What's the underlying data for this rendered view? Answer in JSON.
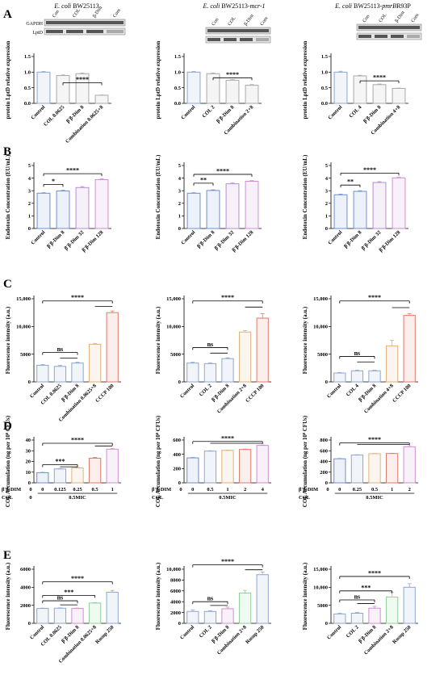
{
  "figure": {
    "row_labels": [
      "A",
      "B",
      "C",
      "D",
      "E"
    ],
    "columns": [
      {
        "italic": "E. coli",
        "strain": "BW25113",
        "suffix": ""
      },
      {
        "italic": "E. coli",
        "strain": "BW25113-",
        "suffix": "mcr-1"
      },
      {
        "italic": "E. coli",
        "strain": "BW25113-",
        "suffix": "pmrB",
        "suffix2": "R93P"
      }
    ],
    "blot_labels": {
      "gapdh": "GAPDH",
      "lptd": "LptD",
      "lanes": [
        "Con",
        "COL",
        "β-Dim",
        "Com"
      ]
    },
    "d_axis_labels": {
      "dim_row": "β'β-DIM",
      "col_row": "COL"
    }
  },
  "chart_data": [
    {
      "id": "A1",
      "type": "bar",
      "row": "A",
      "col": 0,
      "ylabel": "protein LptD relative expression",
      "ylim": [
        0,
        1.5
      ],
      "yticks": [
        0.0,
        0.5,
        1.0,
        1.5
      ],
      "ytick_labels": [
        "0.0",
        "0.5",
        "1.0",
        "1.5"
      ],
      "categories": [
        "Control",
        "COL 0.0625",
        "β'β-Dim 8",
        "Combination 0.0625+8"
      ],
      "values": [
        1.0,
        0.89,
        0.95,
        0.26
      ],
      "errors": [
        0.02,
        0.02,
        0.02,
        0.01
      ],
      "colors": [
        "#8fa6cf",
        "#a9a9a9",
        "#a9a9a9",
        "#a9a9a9"
      ],
      "sig": [
        {
          "from": 1,
          "to": 3,
          "label": "****",
          "level": 0.66
        }
      ]
    },
    {
      "id": "A2",
      "type": "bar",
      "row": "A",
      "col": 1,
      "ylabel": "protein LptD relative expression",
      "ylim": [
        0,
        1.5
      ],
      "yticks": [
        0.0,
        0.5,
        1.0,
        1.5
      ],
      "ytick_labels": [
        "0.0",
        "0.5",
        "1.0",
        "1.5"
      ],
      "categories": [
        "Control",
        "COL 2",
        "β'β-Dim 8",
        "Combination 2+8"
      ],
      "values": [
        1.0,
        0.95,
        0.74,
        0.58
      ],
      "errors": [
        0.02,
        0.02,
        0.02,
        0.02
      ],
      "colors": [
        "#8fa6cf",
        "#a9a9a9",
        "#a9a9a9",
        "#a9a9a9"
      ],
      "sig": [
        {
          "from": 1,
          "to": 3,
          "label": "****",
          "level": 0.82
        }
      ]
    },
    {
      "id": "A3",
      "type": "bar",
      "row": "A",
      "col": 2,
      "ylabel": "protein LptD relative expression",
      "ylim": [
        0,
        1.5
      ],
      "yticks": [
        0.0,
        0.5,
        1.0,
        1.5
      ],
      "ytick_labels": [
        "0.0",
        "0.5",
        "1.0",
        "1.5"
      ],
      "categories": [
        "Control",
        "COL 4",
        "β'β-Dim 8",
        "Combination 4+8"
      ],
      "values": [
        1.0,
        0.88,
        0.6,
        0.48
      ],
      "errors": [
        0.03,
        0.02,
        0.02,
        0.01
      ],
      "colors": [
        "#8fa6cf",
        "#a9a9a9",
        "#a9a9a9",
        "#a9a9a9"
      ],
      "sig": [
        {
          "from": 1,
          "to": 3,
          "label": "****",
          "level": 0.72
        }
      ]
    },
    {
      "id": "B1",
      "type": "bar",
      "row": "B",
      "col": 0,
      "ylabel": "Endotoxin Concentration (EU/mL)",
      "ylim": [
        0,
        5
      ],
      "yticks": [
        0,
        1,
        2,
        3,
        4,
        5
      ],
      "ytick_labels": [
        "0",
        "1",
        "2",
        "3",
        "4",
        "5"
      ],
      "categories": [
        "Control",
        "β'β-Dim 8",
        "β'β-Dim 32",
        "β'β-Dim 128"
      ],
      "values": [
        2.8,
        2.98,
        3.25,
        3.88
      ],
      "errors": [
        0.04,
        0.05,
        0.08,
        0.06
      ],
      "colors": [
        "#6f8fcf",
        "#6f8fcf",
        "#b58fcf",
        "#cf8fcf"
      ],
      "sig": [
        {
          "from": 0,
          "to": 1,
          "label": "*",
          "level": 3.5
        },
        {
          "from": 0,
          "to": 3,
          "label": "****",
          "level": 4.35
        }
      ]
    },
    {
      "id": "B2",
      "type": "bar",
      "row": "B",
      "col": 1,
      "ylabel": "Endotoxin Concentration (EU/mL)",
      "ylim": [
        0,
        5
      ],
      "yticks": [
        0,
        1,
        2,
        3,
        4,
        5
      ],
      "ytick_labels": [
        "0",
        "1",
        "2",
        "3",
        "4",
        "5"
      ],
      "categories": [
        "Control",
        "β'β-Dim 8",
        "β'β-Dim 32",
        "β'β-Dim 128"
      ],
      "values": [
        2.8,
        3.02,
        3.55,
        3.75
      ],
      "errors": [
        0.04,
        0.05,
        0.06,
        0.05
      ],
      "colors": [
        "#6f8fcf",
        "#6f8fcf",
        "#b58fcf",
        "#cf8fcf"
      ],
      "sig": [
        {
          "from": 0,
          "to": 1,
          "label": "**",
          "level": 3.6
        },
        {
          "from": 0,
          "to": 3,
          "label": "****",
          "level": 4.3
        }
      ]
    },
    {
      "id": "B3",
      "type": "bar",
      "row": "B",
      "col": 2,
      "ylabel": "Endotoxin Concentration (EU/mL)",
      "ylim": [
        0,
        5
      ],
      "yticks": [
        0,
        1,
        2,
        3,
        4,
        5
      ],
      "ytick_labels": [
        "0",
        "1",
        "2",
        "3",
        "4",
        "5"
      ],
      "categories": [
        "Control",
        "β'β-Dim 8",
        "β'β-Dim 32",
        "β'β-Dim 128"
      ],
      "values": [
        2.68,
        2.95,
        3.65,
        4.02
      ],
      "errors": [
        0.05,
        0.05,
        0.07,
        0.05
      ],
      "colors": [
        "#6f8fcf",
        "#6f8fcf",
        "#b58fcf",
        "#cf8fcf"
      ],
      "sig": [
        {
          "from": 0,
          "to": 1,
          "label": "**",
          "level": 3.45
        },
        {
          "from": 0,
          "to": 3,
          "label": "****",
          "level": 4.4
        }
      ]
    },
    {
      "id": "C1",
      "type": "bar",
      "row": "C",
      "col": 0,
      "ylabel": "Fluorescence intensity (a.u.)",
      "ylim": [
        0,
        15000
      ],
      "yticks": [
        0,
        5000,
        10000,
        15000
      ],
      "ytick_labels": [
        "0",
        "5000",
        "10,000",
        "15,000"
      ],
      "categories": [
        "Control",
        "COL 0.0625",
        "β'β-Dim 8",
        "Combination 0.0625+8",
        "CCCP 100"
      ],
      "values": [
        3000,
        2800,
        3400,
        6800,
        12500
      ],
      "errors": [
        150,
        180,
        150,
        150,
        300
      ],
      "colors": [
        "#8fa6cf",
        "#8fa6cf",
        "#8fa6cf",
        "#e0b07a",
        "#e07a6a"
      ],
      "sig": [
        {
          "from": 0,
          "to": 2,
          "label": "ns",
          "level": 5300,
          "nested": [
            {
              "from": 1,
              "to": 2,
              "level": 4300
            }
          ]
        },
        {
          "from": 0,
          "to": 4,
          "label": "****",
          "level": 14600,
          "nested": [
            {
              "from": 3,
              "to": 4,
              "level": 13600
            }
          ]
        }
      ]
    },
    {
      "id": "C2",
      "type": "bar",
      "row": "C",
      "col": 1,
      "ylabel": "Fluorescence intensity (a.u.)",
      "ylim": [
        0,
        15000
      ],
      "yticks": [
        0,
        5000,
        10000,
        15000
      ],
      "ytick_labels": [
        "0",
        "5000",
        "10,000",
        "15,000"
      ],
      "categories": [
        "Control",
        "COL 2",
        "β'β-Dim 8",
        "Combination 2+8",
        "CCCP 100"
      ],
      "values": [
        3400,
        3300,
        4200,
        9000,
        11500
      ],
      "errors": [
        150,
        150,
        150,
        250,
        800
      ],
      "colors": [
        "#8fa6cf",
        "#8fa6cf",
        "#8fa6cf",
        "#e0b07a",
        "#e07a6a"
      ],
      "sig": [
        {
          "from": 0,
          "to": 2,
          "label": "ns",
          "level": 6200,
          "nested": [
            {
              "from": 1,
              "to": 2,
              "level": 5200
            }
          ]
        },
        {
          "from": 0,
          "to": 4,
          "label": "****",
          "level": 14600,
          "nested": [
            {
              "from": 3,
              "to": 4,
              "level": 13500
            }
          ]
        }
      ]
    },
    {
      "id": "C3",
      "type": "bar",
      "row": "C",
      "col": 2,
      "ylabel": "Fluorescence intensity (a.u.)",
      "ylim": [
        0,
        15000
      ],
      "yticks": [
        0,
        5000,
        10000,
        15000
      ],
      "ytick_labels": [
        "0",
        "5000",
        "10,000",
        "15,000"
      ],
      "categories": [
        "Control",
        "COL 4",
        "β'β-Dim 8",
        "Combination 4+8",
        "CCCP 100"
      ],
      "values": [
        1600,
        2000,
        2000,
        6500,
        12000
      ],
      "errors": [
        100,
        120,
        120,
        1000,
        300
      ],
      "colors": [
        "#8fa6cf",
        "#8fa6cf",
        "#8fa6cf",
        "#e0b07a",
        "#e07a6a"
      ],
      "sig": [
        {
          "from": 0,
          "to": 2,
          "label": "ns",
          "level": 4600,
          "nested": [
            {
              "from": 1,
              "to": 2,
              "level": 3600
            }
          ]
        },
        {
          "from": 0,
          "to": 4,
          "label": "****",
          "level": 14600,
          "nested": [
            {
              "from": 3,
              "to": 4,
              "level": 13400
            }
          ]
        }
      ]
    },
    {
      "id": "D1",
      "type": "bar",
      "row": "D",
      "col": 0,
      "ylabel": "COL Accumulation (ng per 10⁸ CFUs)",
      "ylim": [
        0,
        40
      ],
      "yticks": [
        0,
        10,
        20,
        30,
        40
      ],
      "ytick_labels": [
        "0",
        "10",
        "20",
        "30",
        "40"
      ],
      "categories": [
        "0",
        "0.125",
        "0.25",
        "0.5",
        "1"
      ],
      "values": [
        9.5,
        13,
        14,
        23,
        31.5
      ],
      "errors": [
        0.3,
        0.4,
        0.5,
        0.8,
        0.5
      ],
      "pre_dim": "0",
      "pre_col": "0",
      "col_label": "0.5MIC",
      "colors": [
        "#6f8fcf",
        "#8fa6cf",
        "#e0b07a",
        "#e07a6a",
        "#cf8fcf"
      ],
      "sig": [
        {
          "from": 0,
          "to": 2,
          "label": "***",
          "level": 17,
          "nested": [
            {
              "from": 1,
              "to": 2,
              "level": 15
            }
          ]
        },
        {
          "from": 0,
          "to": 4,
          "label": "****",
          "level": 37,
          "nested": [
            {
              "from": 3,
              "to": 4,
              "level": 34.5
            }
          ]
        }
      ]
    },
    {
      "id": "D2",
      "type": "bar",
      "row": "D",
      "col": 1,
      "ylabel": "COL Accumulation (ng per 10⁸ CFUs)",
      "ylim": [
        0,
        600
      ],
      "yticks": [
        0,
        200,
        400,
        600
      ],
      "ytick_labels": [
        "0",
        "200",
        "400",
        "600"
      ],
      "categories": [
        "0",
        "0.5",
        "1",
        "2",
        "4"
      ],
      "values": [
        350,
        445,
        455,
        468,
        525
      ],
      "errors": [
        5,
        5,
        5,
        5,
        5
      ],
      "pre_dim": "0",
      "pre_col": "",
      "col_label": "0.5MIC",
      "colors": [
        "#6f8fcf",
        "#8fa6cf",
        "#e0b07a",
        "#e07a6a",
        "#cf8fcf"
      ],
      "sig": [
        {
          "from": 0,
          "to": 4,
          "label": "****",
          "level": 580,
          "nested": [
            {
              "from": 1,
              "to": 4,
              "level": 555
            }
          ]
        }
      ]
    },
    {
      "id": "D3",
      "type": "bar",
      "row": "D",
      "col": 2,
      "ylabel": "COL Accumulation (ng per 10⁸ CFUs)",
      "ylim": [
        0,
        800
      ],
      "yticks": [
        0,
        200,
        400,
        600,
        800
      ],
      "ytick_labels": [
        "0",
        "200",
        "400",
        "600",
        "800"
      ],
      "categories": [
        "0",
        "0.25",
        "0.5",
        "1",
        "2"
      ],
      "values": [
        450,
        520,
        545,
        548,
        675
      ],
      "errors": [
        5,
        6,
        5,
        5,
        5
      ],
      "pre_dim": "0",
      "pre_col": "",
      "col_label": "0.5MIC",
      "colors": [
        "#6f8fcf",
        "#8fa6cf",
        "#e0b07a",
        "#e07a6a",
        "#cf8fcf"
      ],
      "sig": [
        {
          "from": 0,
          "to": 4,
          "label": "****",
          "level": 745,
          "nested": [
            {
              "from": 1,
              "to": 4,
              "level": 715
            }
          ]
        }
      ]
    },
    {
      "id": "E1",
      "type": "bar",
      "row": "E",
      "col": 0,
      "ylabel": "Fluorescence intensity (a.u.)",
      "ylim": [
        0,
        6000
      ],
      "yticks": [
        0,
        2000,
        4000,
        6000
      ],
      "ytick_labels": [
        "0",
        "2000",
        "4000",
        "6000"
      ],
      "categories": [
        "Control",
        "COL 0.0625",
        "β'β-Dim 8",
        "Combination 0.0625+8",
        "Rosup 250"
      ],
      "values": [
        1650,
        1680,
        1650,
        2250,
        3450
      ],
      "errors": [
        40,
        40,
        40,
        60,
        200
      ],
      "colors": [
        "#8fa6cf",
        "#8fa6cf",
        "#cf8fcf",
        "#8fcf9a",
        "#8fa6cf"
      ],
      "sig": [
        {
          "from": 0,
          "to": 2,
          "label": "ns",
          "level": 2500,
          "nested": [
            {
              "from": 1,
              "to": 2,
              "level": 2050
            }
          ]
        },
        {
          "from": 0,
          "to": 3,
          "label": "***",
          "level": 3100
        },
        {
          "from": 0,
          "to": 4,
          "label": "****",
          "level": 4600
        }
      ]
    },
    {
      "id": "E2",
      "type": "bar",
      "row": "E",
      "col": 1,
      "ylabel": "Fluorescence intensity (a.u.)",
      "ylim": [
        0,
        10000
      ],
      "yticks": [
        0,
        2000,
        4000,
        6000,
        8000,
        10000
      ],
      "ytick_labels": [
        "0",
        "2000",
        "4000",
        "6000",
        "8000",
        "10,000"
      ],
      "categories": [
        "Control",
        "COL 2",
        "β'β-Dim 8",
        "Combination 2+8",
        "Rosup 250"
      ],
      "values": [
        2200,
        2200,
        2700,
        5600,
        9000
      ],
      "errors": [
        300,
        150,
        300,
        500,
        500
      ],
      "colors": [
        "#8fa6cf",
        "#8fa6cf",
        "#cf8fcf",
        "#8fcf9a",
        "#8fa6cf"
      ],
      "sig": [
        {
          "from": 0,
          "to": 2,
          "label": "ns",
          "level": 4000,
          "nested": [
            {
              "from": 1,
              "to": 2,
              "level": 3300
            }
          ]
        },
        {
          "from": 0,
          "to": 4,
          "label": "****",
          "level": 10800,
          "nested": [
            {
              "from": 3,
              "to": 4,
              "level": 9900
            }
          ]
        }
      ]
    },
    {
      "id": "E3",
      "type": "bar",
      "row": "E",
      "col": 2,
      "ylabel": "Fluorescence intensity (a.u.)",
      "ylim": [
        0,
        15000
      ],
      "yticks": [
        0,
        5000,
        10000,
        15000
      ],
      "ytick_labels": [
        "0",
        "5000",
        "10,000",
        "15,000"
      ],
      "categories": [
        "Control",
        "COL 2",
        "β'β-Dim 8",
        "Combination 2+8",
        "Rosup 250"
      ],
      "values": [
        2600,
        2800,
        4200,
        7300,
        10000
      ],
      "errors": [
        200,
        200,
        500,
        1300,
        1000
      ],
      "colors": [
        "#8fa6cf",
        "#8fa6cf",
        "#cf8fcf",
        "#8fcf9a",
        "#8fa6cf"
      ],
      "sig": [
        {
          "from": 0,
          "to": 2,
          "label": "ns",
          "level": 6500,
          "nested": [
            {
              "from": 1,
              "to": 2,
              "level": 5500
            }
          ]
        },
        {
          "from": 0,
          "to": 3,
          "label": "***",
          "level": 9000
        },
        {
          "from": 0,
          "to": 4,
          "label": "****",
          "level": 13000
        }
      ]
    }
  ]
}
